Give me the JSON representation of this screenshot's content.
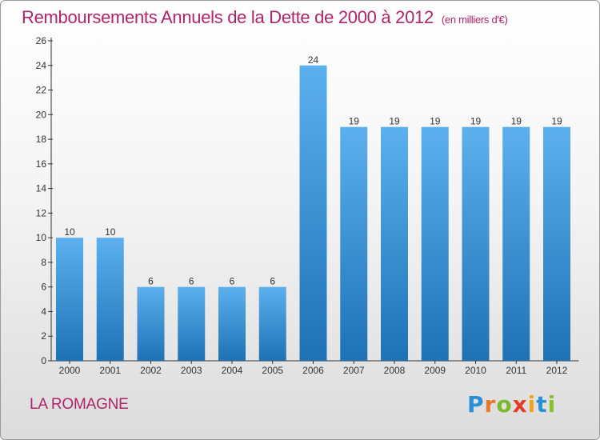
{
  "title": {
    "main": "Remboursements Annuels de la Dette de 2000 à 2012",
    "unit": "(en milliers d'€)"
  },
  "commune": "LA ROMAGNE",
  "logo": {
    "letters": [
      "P",
      "r",
      "o",
      "x",
      "i",
      "t",
      "i"
    ],
    "colors": [
      "#2c8fd6",
      "#e8792b",
      "#7ab929",
      "#e23c2a",
      "#f0a51d",
      "#2c8fd6",
      "#8bc02c"
    ]
  },
  "colors": {
    "title": "#b0246a",
    "bar_top": "#5db0ee",
    "bar_bottom": "#1e72b4"
  },
  "chart_data": {
    "type": "bar",
    "categories": [
      "2000",
      "2001",
      "2002",
      "2003",
      "2004",
      "2005",
      "2006",
      "2007",
      "2008",
      "2009",
      "2010",
      "2011",
      "2012"
    ],
    "values": [
      10,
      10,
      6,
      6,
      6,
      6,
      24,
      19,
      19,
      19,
      19,
      19,
      19
    ],
    "data_labels": [
      "10",
      "10",
      "6",
      "6",
      "6",
      "6",
      "24",
      "19",
      "19",
      "19",
      "19",
      "19",
      "19"
    ],
    "yticks": [
      0,
      2,
      4,
      6,
      8,
      10,
      12,
      14,
      16,
      18,
      20,
      22,
      24,
      26
    ],
    "ylim": [
      0,
      26
    ],
    "grid": false,
    "legend": "none"
  }
}
